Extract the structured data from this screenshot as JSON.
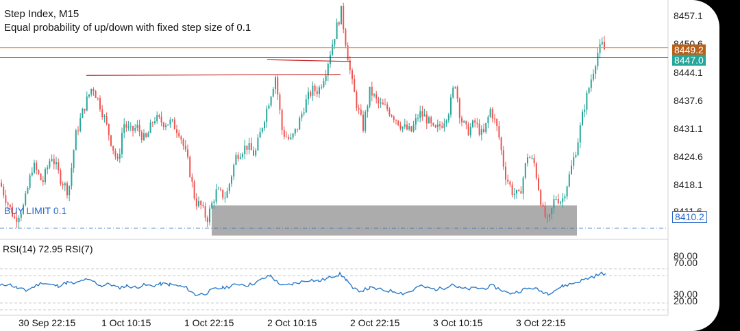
{
  "chart_info": {
    "title": "Step Index, M15",
    "description": "Equal probability of up/down with fixed step size of 0.1"
  },
  "price_axis": [
    "8457.1",
    "8450.6",
    "8444.1",
    "8437.6",
    "8431.1",
    "8424.6",
    "8418.1",
    "8411.6"
  ],
  "price_tags": {
    "ask": "8449.2",
    "bid": "8447.0",
    "buy_limit": "8410.2"
  },
  "buy_limit_label": "BUY LIMIT 0.1",
  "rsi": {
    "label": "RSI(14) 72.95 RSI(7)",
    "levels": [
      "80.00",
      "70.00",
      "30.00",
      "20.00"
    ]
  },
  "time_axis": [
    "30 Sep 22:15",
    "1 Oct 10:15",
    "1 Oct 22:15",
    "2 Oct 10:15",
    "2 Oct 22:15",
    "3 Oct 10:15",
    "3 Oct 22:15"
  ],
  "colors": {
    "bull": "#26a69a",
    "bear": "#ef5350",
    "ask_line": "#e59a3b",
    "ask_tag": "#b8601a",
    "bid_line": "#333333",
    "bid_tag": "#26a69a",
    "limit": "#2a68c8",
    "zone": "#9e9e9e",
    "trendline": "#c62828",
    "rsi_line": "#2979c9"
  },
  "chart_data": {
    "type": "candlestick",
    "symbol": "Step Index",
    "timeframe": "M15",
    "ylim": [
      8408.5,
      8459.5
    ],
    "price_close_path": [
      [
        0,
        8420
      ],
      [
        10,
        8416
      ],
      [
        22,
        8412
      ],
      [
        35,
        8415
      ],
      [
        48,
        8424
      ],
      [
        62,
        8420
      ],
      [
        75,
        8426
      ],
      [
        88,
        8421
      ],
      [
        100,
        8418
      ],
      [
        110,
        8430
      ],
      [
        122,
        8436
      ],
      [
        135,
        8441
      ],
      [
        148,
        8436
      ],
      [
        160,
        8430
      ],
      [
        172,
        8424
      ],
      [
        180,
        8433
      ],
      [
        190,
        8431
      ],
      [
        200,
        8432
      ],
      [
        212,
        8429
      ],
      [
        225,
        8434
      ],
      [
        238,
        8433
      ],
      [
        250,
        8433
      ],
      [
        262,
        8431
      ],
      [
        275,
        8424
      ],
      [
        285,
        8416
      ],
      [
        293,
        8415
      ],
      [
        302,
        8412
      ],
      [
        315,
        8418
      ],
      [
        330,
        8417
      ],
      [
        345,
        8426
      ],
      [
        360,
        8428
      ],
      [
        372,
        8426
      ],
      [
        382,
        8432
      ],
      [
        393,
        8438
      ],
      [
        402,
        8443
      ],
      [
        412,
        8431
      ],
      [
        424,
        8429
      ],
      [
        434,
        8432
      ],
      [
        445,
        8437
      ],
      [
        455,
        8440
      ],
      [
        465,
        8440
      ],
      [
        475,
        8444
      ],
      [
        485,
        8450
      ],
      [
        492,
        8454
      ],
      [
        498,
        8457
      ],
      [
        505,
        8450
      ],
      [
        513,
        8442
      ],
      [
        522,
        8436
      ],
      [
        530,
        8432
      ],
      [
        540,
        8440
      ],
      [
        552,
        8437
      ],
      [
        565,
        8436
      ],
      [
        577,
        8434
      ],
      [
        588,
        8432
      ],
      [
        600,
        8431
      ],
      [
        612,
        8435
      ],
      [
        622,
        8434
      ],
      [
        634,
        8431
      ],
      [
        646,
        8433
      ],
      [
        656,
        8436
      ],
      [
        664,
        8442
      ],
      [
        672,
        8434
      ],
      [
        682,
        8431
      ],
      [
        693,
        8433
      ],
      [
        705,
        8430
      ],
      [
        716,
        8436
      ],
      [
        727,
        8431
      ],
      [
        737,
        8422
      ],
      [
        748,
        8418
      ],
      [
        758,
        8417
      ],
      [
        770,
        8426
      ],
      [
        780,
        8424
      ],
      [
        792,
        8414
      ],
      [
        800,
        8411
      ],
      [
        810,
        8417
      ],
      [
        820,
        8416
      ],
      [
        830,
        8421
      ],
      [
        842,
        8428
      ],
      [
        852,
        8436
      ],
      [
        862,
        8442
      ],
      [
        872,
        8448
      ],
      [
        880,
        8450
      ],
      [
        884,
        8447.5
      ]
    ],
    "horizontal_levels": [
      {
        "name": "ask",
        "value": 8449.2
      },
      {
        "name": "bid",
        "value": 8447.0
      },
      {
        "name": "buy_limit",
        "value": 8410.2
      }
    ],
    "support_zone": {
      "from": 8410.2,
      "to": 8414.8
    },
    "trendlines": [
      {
        "price_start": 8443.2,
        "price_end": 8443.4
      },
      {
        "price_start": 8446.6,
        "price_end": 8446.2
      }
    ],
    "rsi_levels": [
      80,
      70,
      30,
      20
    ],
    "rsi_path": [
      [
        0,
        55
      ],
      [
        12,
        58
      ],
      [
        25,
        52
      ],
      [
        38,
        48
      ],
      [
        50,
        54
      ],
      [
        62,
        60
      ],
      [
        72,
        57
      ],
      [
        85,
        55
      ],
      [
        98,
        60
      ],
      [
        110,
        58
      ],
      [
        122,
        64
      ],
      [
        135,
        62
      ],
      [
        148,
        55
      ],
      [
        160,
        58
      ],
      [
        172,
        52
      ],
      [
        185,
        55
      ],
      [
        198,
        53
      ],
      [
        210,
        56
      ],
      [
        222,
        55
      ],
      [
        235,
        58
      ],
      [
        248,
        57
      ],
      [
        260,
        55
      ],
      [
        272,
        52
      ],
      [
        285,
        42
      ],
      [
        300,
        44
      ],
      [
        312,
        50
      ],
      [
        325,
        52
      ],
      [
        338,
        55
      ],
      [
        350,
        58
      ],
      [
        362,
        56
      ],
      [
        374,
        60
      ],
      [
        385,
        66
      ],
      [
        395,
        70
      ],
      [
        405,
        60
      ],
      [
        415,
        55
      ],
      [
        428,
        58
      ],
      [
        440,
        61
      ],
      [
        452,
        64
      ],
      [
        465,
        62
      ],
      [
        478,
        66
      ],
      [
        488,
        70
      ],
      [
        496,
        72
      ],
      [
        506,
        64
      ],
      [
        515,
        50
      ],
      [
        527,
        48
      ],
      [
        540,
        52
      ],
      [
        552,
        50
      ],
      [
        564,
        48
      ],
      [
        576,
        47
      ],
      [
        588,
        44
      ],
      [
        600,
        47
      ],
      [
        612,
        55
      ],
      [
        624,
        52
      ],
      [
        636,
        50
      ],
      [
        648,
        52
      ],
      [
        660,
        58
      ],
      [
        670,
        52
      ],
      [
        682,
        50
      ],
      [
        694,
        52
      ],
      [
        706,
        51
      ],
      [
        718,
        55
      ],
      [
        730,
        50
      ],
      [
        742,
        44
      ],
      [
        754,
        46
      ],
      [
        766,
        50
      ],
      [
        778,
        52
      ],
      [
        790,
        47
      ],
      [
        800,
        44
      ],
      [
        812,
        50
      ],
      [
        822,
        55
      ],
      [
        834,
        58
      ],
      [
        846,
        62
      ],
      [
        858,
        66
      ],
      [
        870,
        70
      ],
      [
        878,
        73
      ],
      [
        884,
        72.95
      ]
    ]
  }
}
